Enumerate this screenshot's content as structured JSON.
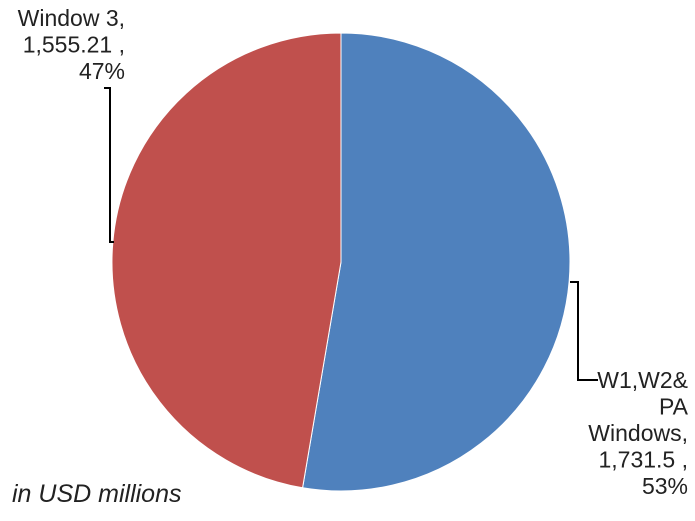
{
  "chart_data": {
    "type": "pie",
    "title": "",
    "slices": [
      {
        "label_lines": [
          "W1,W2&",
          "PA",
          "Windows,",
          "1,731.5 ,",
          "53%"
        ],
        "value": 1731.5,
        "percent": 53,
        "color": "#4f81bd"
      },
      {
        "label_lines": [
          "Window 3,",
          "1,555.21 ,",
          "47%"
        ],
        "value": 1555.21,
        "percent": 47,
        "color": "#c0504d"
      }
    ],
    "start_angle": "12 o'clock",
    "direction": "clockwise",
    "note": "in USD millions"
  }
}
